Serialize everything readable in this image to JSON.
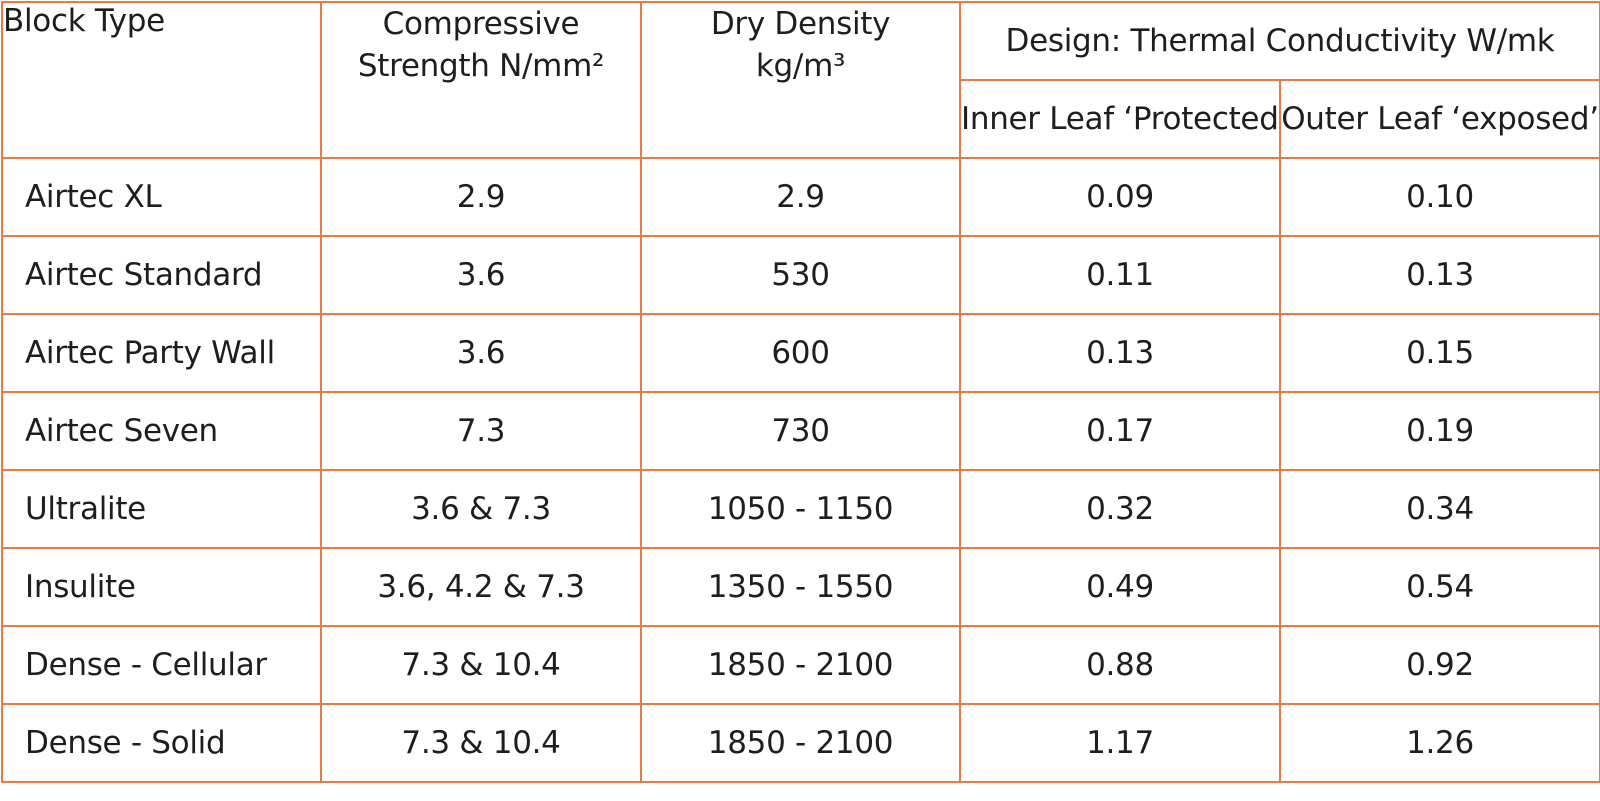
{
  "header": {
    "block_type": "Block Type",
    "compressive_line1": "Compressive",
    "compressive_line2": "Strength N/mm²",
    "density_line1": "Dry Density",
    "density_line2": "kg/m³",
    "design_group": "Design: Thermal Conductivity W/mk",
    "inner_leaf": "Inner Leaf ‘Protected’",
    "outer_leaf": "Outer Leaf ‘exposed’"
  },
  "rows": [
    {
      "type": "Airtec XL",
      "strength": "2.9",
      "density": "2.9",
      "inner": "0.09",
      "outer": "0.10"
    },
    {
      "type": "Airtec Standard",
      "strength": "3.6",
      "density": "530",
      "inner": "0.11",
      "outer": "0.13"
    },
    {
      "type": "Airtec Party Wall",
      "strength": "3.6",
      "density": "600",
      "inner": "0.13",
      "outer": "0.15"
    },
    {
      "type": "Airtec Seven",
      "strength": "7.3",
      "density": "730",
      "inner": "0.17",
      "outer": "0.19"
    },
    {
      "type": "Ultralite",
      "strength": "3.6 & 7.3",
      "density": "1050 - 1150",
      "inner": "0.32",
      "outer": "0.34"
    },
    {
      "type": "Insulite",
      "strength": "3.6, 4.2 & 7.3",
      "density": "1350 - 1550",
      "inner": "0.49",
      "outer": "0.54"
    },
    {
      "type": "Dense - Cellular",
      "strength": "7.3 & 10.4",
      "density": "1850 - 2100",
      "inner": "0.88",
      "outer": "0.92"
    },
    {
      "type": "Dense - Solid",
      "strength": "7.3 & 10.4",
      "density": "1850 - 2100",
      "inner": "1.17",
      "outer": "1.26"
    }
  ],
  "colors": {
    "border": "#e87a45",
    "text": "#1e1e1e",
    "background": "#ffffff"
  }
}
